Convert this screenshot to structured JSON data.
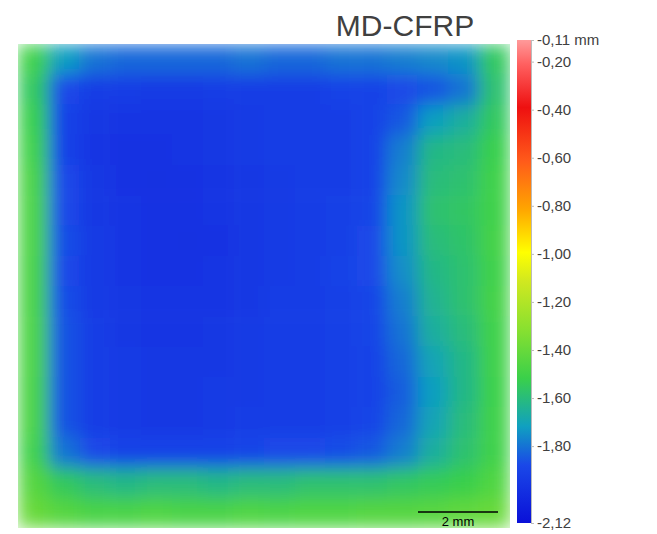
{
  "chart_data": {
    "type": "heatmap",
    "title": "MD-CFRP",
    "tick_labels": false,
    "xlim": [
      0,
      12.3
    ],
    "cells": [
      [
        -1.5,
        -1.72,
        -1.8,
        -1.82,
        -1.82,
        -1.82,
        -1.82,
        -1.8,
        -1.82,
        -1.82,
        -1.8,
        -1.8,
        -1.78,
        -1.76,
        -1.74,
        -1.55
      ],
      [
        -1.55,
        -1.88,
        -1.92,
        -1.93,
        -1.94,
        -1.94,
        -1.93,
        -1.92,
        -1.92,
        -1.92,
        -1.9,
        -1.9,
        -1.88,
        -1.86,
        -1.8,
        -1.58
      ],
      [
        -1.52,
        -1.9,
        -1.95,
        -1.96,
        -1.96,
        -1.96,
        -1.95,
        -1.94,
        -1.93,
        -1.92,
        -1.92,
        -1.9,
        -1.85,
        -1.72,
        -1.66,
        -1.55
      ],
      [
        -1.5,
        -1.9,
        -1.96,
        -1.97,
        -1.97,
        -1.96,
        -1.95,
        -1.94,
        -1.93,
        -1.93,
        -1.92,
        -1.9,
        -1.78,
        -1.62,
        -1.6,
        -1.52
      ],
      [
        -1.48,
        -1.88,
        -1.95,
        -1.97,
        -1.98,
        -1.97,
        -1.96,
        -1.95,
        -1.94,
        -1.93,
        -1.92,
        -1.9,
        -1.76,
        -1.6,
        -1.58,
        -1.5
      ],
      [
        -1.47,
        -1.88,
        -1.95,
        -1.96,
        -1.97,
        -1.97,
        -1.96,
        -1.95,
        -1.94,
        -1.93,
        -1.91,
        -1.89,
        -1.74,
        -1.58,
        -1.56,
        -1.5
      ],
      [
        -1.47,
        -1.87,
        -1.94,
        -1.96,
        -1.97,
        -1.98,
        -1.97,
        -1.95,
        -1.94,
        -1.93,
        -1.91,
        -1.88,
        -1.74,
        -1.6,
        -1.57,
        -1.49
      ],
      [
        -1.48,
        -1.88,
        -1.94,
        -1.96,
        -1.97,
        -1.97,
        -1.96,
        -1.95,
        -1.94,
        -1.92,
        -1.9,
        -1.88,
        -1.75,
        -1.62,
        -1.58,
        -1.5
      ],
      [
        -1.48,
        -1.87,
        -1.94,
        -1.95,
        -1.96,
        -1.96,
        -1.96,
        -1.95,
        -1.93,
        -1.92,
        -1.91,
        -1.89,
        -1.78,
        -1.64,
        -1.58,
        -1.49
      ],
      [
        -1.47,
        -1.86,
        -1.93,
        -1.95,
        -1.96,
        -1.96,
        -1.95,
        -1.94,
        -1.93,
        -1.92,
        -1.91,
        -1.89,
        -1.8,
        -1.66,
        -1.6,
        -1.5
      ],
      [
        -1.47,
        -1.86,
        -1.93,
        -1.94,
        -1.95,
        -1.95,
        -1.95,
        -1.94,
        -1.93,
        -1.92,
        -1.91,
        -1.9,
        -1.82,
        -1.7,
        -1.62,
        -1.5
      ],
      [
        -1.48,
        -1.86,
        -1.93,
        -1.94,
        -1.95,
        -1.95,
        -1.94,
        -1.94,
        -1.93,
        -1.92,
        -1.91,
        -1.9,
        -1.84,
        -1.72,
        -1.62,
        -1.51
      ],
      [
        -1.48,
        -1.86,
        -1.93,
        -1.94,
        -1.95,
        -1.95,
        -1.94,
        -1.93,
        -1.92,
        -1.92,
        -1.91,
        -1.89,
        -1.82,
        -1.7,
        -1.6,
        -1.5
      ],
      [
        -1.5,
        -1.8,
        -1.88,
        -1.9,
        -1.9,
        -1.9,
        -1.9,
        -1.89,
        -1.88,
        -1.88,
        -1.87,
        -1.85,
        -1.78,
        -1.66,
        -1.58,
        -1.5
      ],
      [
        -1.45,
        -1.55,
        -1.6,
        -1.62,
        -1.6,
        -1.6,
        -1.62,
        -1.6,
        -1.6,
        -1.58,
        -1.58,
        -1.58,
        -1.56,
        -1.54,
        -1.52,
        -1.46
      ],
      [
        -1.4,
        -1.45,
        -1.48,
        -1.48,
        -1.46,
        -1.48,
        -1.48,
        -1.46,
        -1.47,
        -1.46,
        -1.46,
        -1.45,
        -1.45,
        -1.44,
        -1.42,
        -1.4
      ]
    ],
    "colorbar": {
      "range": [
        -2.12,
        -0.11
      ],
      "ticks": [
        {
          "value": -0.11,
          "label": "-0,11 mm"
        },
        {
          "value": -0.2,
          "label": "-0,20"
        },
        {
          "value": -0.4,
          "label": "-0,40"
        },
        {
          "value": -0.6,
          "label": "-0,60"
        },
        {
          "value": -0.8,
          "label": "-0,80"
        },
        {
          "value": -1.0,
          "label": "-1,00"
        },
        {
          "value": -1.2,
          "label": "-1,20"
        },
        {
          "value": -1.4,
          "label": "-1,40"
        },
        {
          "value": -1.6,
          "label": "-1,60"
        },
        {
          "value": -1.8,
          "label": "-1,80"
        },
        {
          "value": -2.12,
          "label": "-2,12"
        }
      ]
    },
    "scale_bar": {
      "length": 2,
      "label": "2 mm"
    }
  }
}
